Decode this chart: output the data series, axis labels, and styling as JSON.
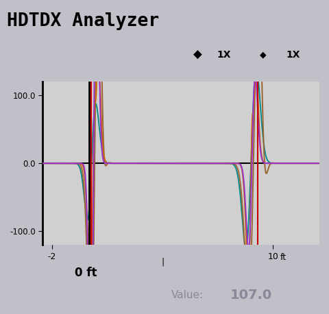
{
  "title": "HDTDX Analyzer",
  "title_bg": "#8a94b8",
  "plot_bg": "#d0d0d0",
  "outer_bg": "#c0c0c8",
  "ylim": [
    -120,
    120
  ],
  "xlim": [
    -2.5,
    12.5
  ],
  "yticks": [
    -100.0,
    0.0,
    100.0
  ],
  "xtick_positions": [
    -2,
    10
  ],
  "xtick_labels": [
    "-2",
    "10"
  ],
  "cursor_color": "#cc0000",
  "value_text": "Value:",
  "value_num": "107.0",
  "value_color": "#888899",
  "bottom_label": "0 ft",
  "controls_text": "◆  1X ◆  1X",
  "signal_colors": [
    "#008888",
    "#cc6600",
    "#9933cc",
    "#996633"
  ],
  "c1": 0.28,
  "c2": 8.85,
  "red_line1": 0.12,
  "red_line2": 9.15
}
